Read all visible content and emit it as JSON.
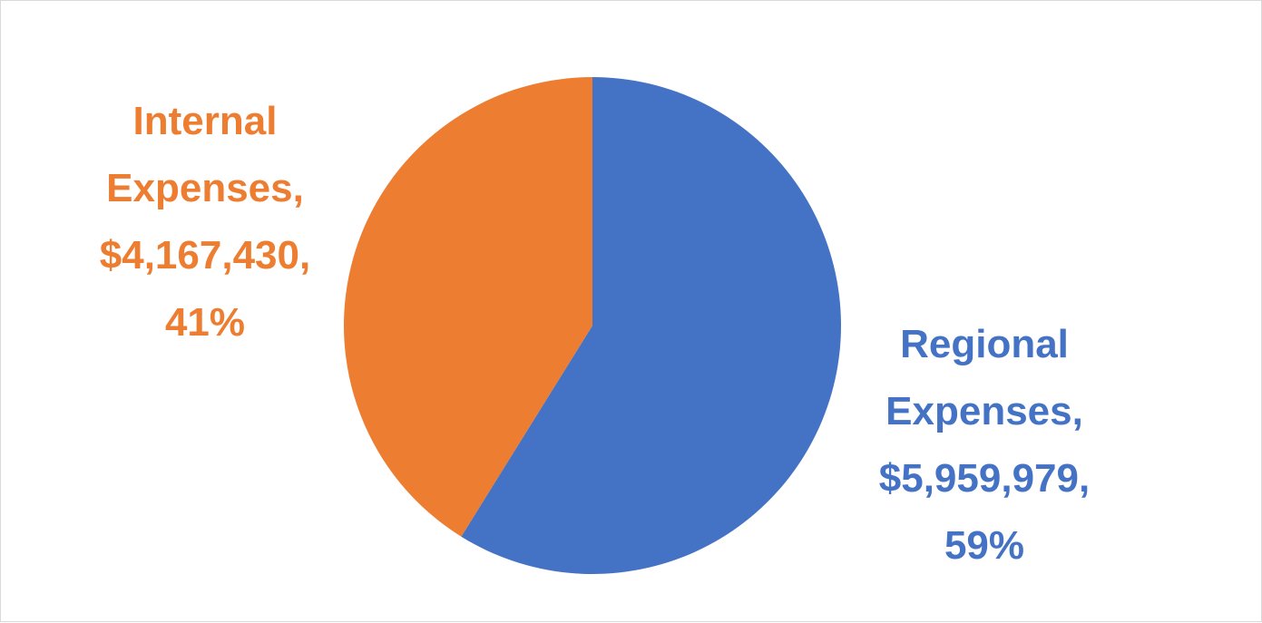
{
  "chart_data": {
    "type": "pie",
    "slices": [
      {
        "name": "Regional Expenses",
        "value": 5959979,
        "percent": 59,
        "color": "#4472C4",
        "label_lines": [
          "Regional",
          "Expenses,",
          "$5,959,979,",
          "59%"
        ]
      },
      {
        "name": "Internal Expenses",
        "value": 4167430,
        "percent": 41,
        "color": "#ED7D31",
        "label_lines": [
          "Internal",
          "Expenses,",
          "$4,167,430,",
          "41%"
        ]
      }
    ],
    "start_angle_deg": 0,
    "direction": "clockwise",
    "legend": "none",
    "label_position": "outside"
  }
}
